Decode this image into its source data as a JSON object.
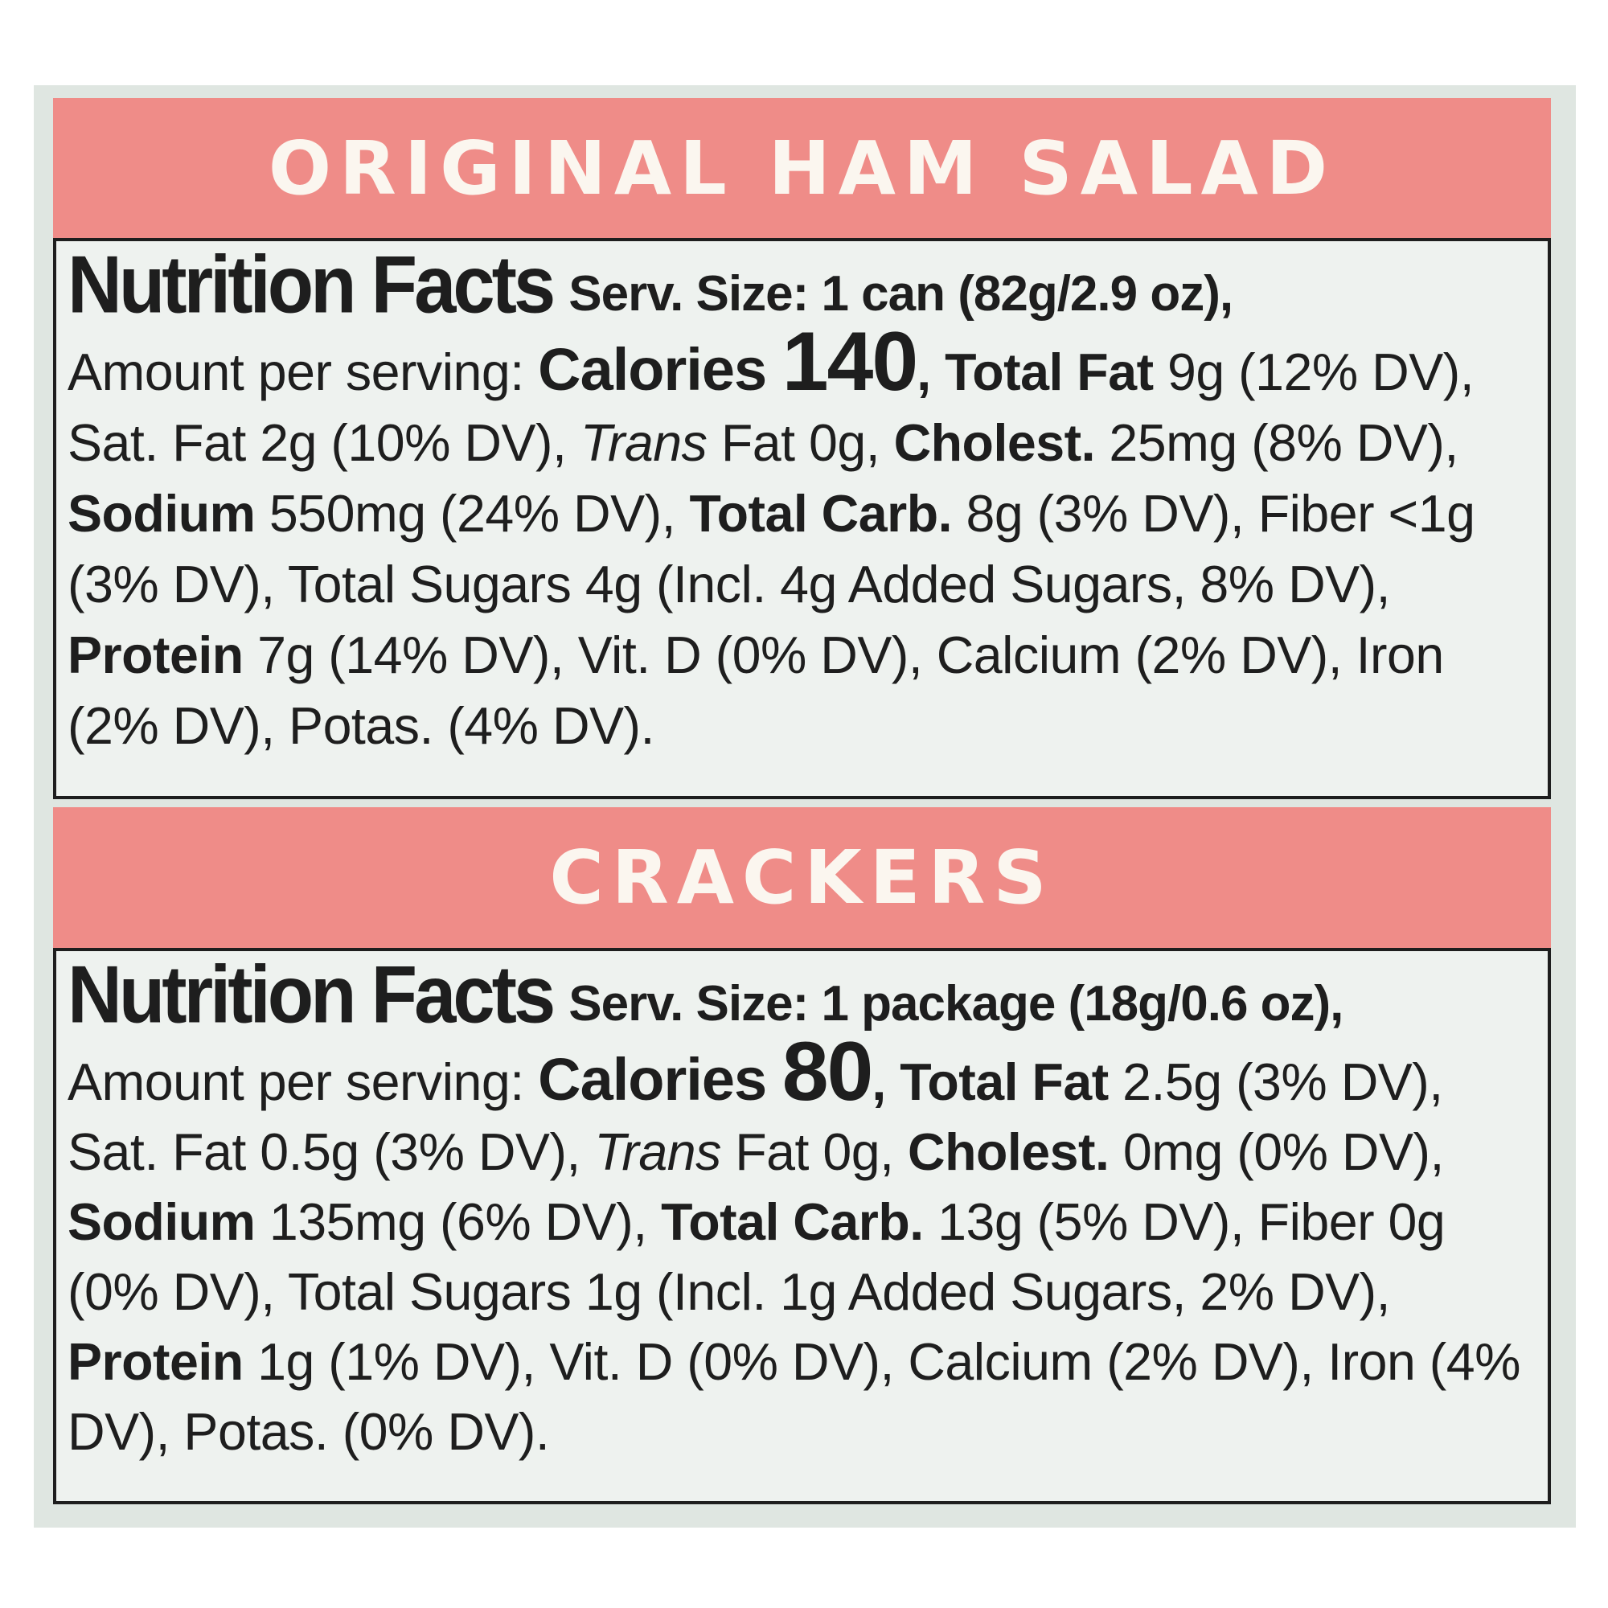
{
  "ham": {
    "band_title": "ORIGINAL HAM SALAD",
    "nf_title": "Nutrition Facts",
    "serving": "Serv. Size: 1 can (82g/2.9 oz),",
    "amount_label": "Amount per serving: ",
    "calories_label": "Calories ",
    "calories_value": "140",
    "t1": ", ",
    "total_fat_label": "Total Fat",
    "t2": " 9g (12% DV), Sat. Fat 2g (10% DV), ",
    "trans_label": "Trans",
    "t3": " Fat 0g, ",
    "cholest_label": "Cholest.",
    "t4": " 25mg (8% DV), ",
    "sodium_label": "Sodium",
    "t5": " 550mg (24% DV), ",
    "carb_label": "Total Carb.",
    "t6": " 8g (3% DV), Fiber <1g (3% DV), Total Sugars 4g (Incl. 4g Added Sugars, 8% DV), ",
    "protein_label": "Protein",
    "t7": " 7g (14% DV), Vit. D (0% DV), Calcium (2% DV), Iron (2% DV), Potas. (4% DV)."
  },
  "crackers": {
    "band_title": "CRACKERS",
    "nf_title": "Nutrition Facts",
    "serving": "Serv. Size: 1 package (18g/0.6 oz),",
    "amount_label": "Amount per serving: ",
    "calories_label": "Calories ",
    "calories_value": "80",
    "t1": ", ",
    "total_fat_label": "Total Fat",
    "t2": " 2.5g (3% DV), Sat. Fat 0.5g (3% DV), ",
    "trans_label": "Trans",
    "t3": " Fat 0g, ",
    "cholest_label": "Cholest.",
    "t4": " 0mg (0% DV), ",
    "sodium_label": "Sodium",
    "t5": " 135mg (6% DV), ",
    "carb_label": "Total Carb.",
    "t6": " 13g (5% DV), Fiber 0g (0% DV), Total Sugars 1g (Incl. 1g Added Sugars, 2% DV), ",
    "protein_label": "Protein",
    "t7": " 1g (1% DV), Vit. D (0% DV), Calcium (2% DV), Iron (4% DV), Potas. (0% DV)."
  }
}
